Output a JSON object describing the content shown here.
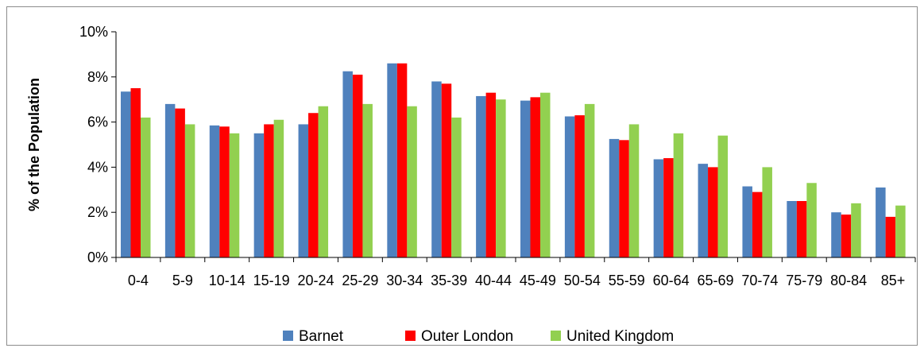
{
  "chart_data": {
    "type": "bar",
    "title": "",
    "xlabel": "",
    "ylabel": "% of the Population",
    "ylim": [
      0,
      10
    ],
    "yticks": [
      "0%",
      "2%",
      "4%",
      "6%",
      "8%",
      "10%"
    ],
    "y_tick_values": [
      0,
      2,
      4,
      6,
      8,
      10
    ],
    "grid": false,
    "legend_position": "bottom",
    "categories": [
      "0-4",
      "5-9",
      "10-14",
      "15-19",
      "20-24",
      "25-29",
      "30-34",
      "35-39",
      "40-44",
      "45-49",
      "50-54",
      "55-59",
      "60-64",
      "65-69",
      "70-74",
      "75-79",
      "80-84",
      "85+"
    ],
    "series": [
      {
        "name": "Barnet",
        "color": "#4f81bd",
        "values": [
          7.35,
          6.8,
          5.85,
          5.5,
          5.9,
          8.25,
          8.6,
          7.8,
          7.15,
          6.95,
          6.25,
          5.25,
          4.35,
          4.15,
          3.15,
          2.5,
          2.0,
          3.1
        ]
      },
      {
        "name": "Outer London",
        "color": "#ff0000",
        "values": [
          7.5,
          6.6,
          5.8,
          5.9,
          6.4,
          8.1,
          8.6,
          7.7,
          7.3,
          7.1,
          6.3,
          5.2,
          4.4,
          4.0,
          2.9,
          2.5,
          1.9,
          1.8
        ]
      },
      {
        "name": "United Kingdom",
        "color": "#92d050",
        "values": [
          6.2,
          5.9,
          5.5,
          6.1,
          6.7,
          6.8,
          6.7,
          6.2,
          7.0,
          7.3,
          6.8,
          5.9,
          5.5,
          5.4,
          4.0,
          3.3,
          2.4,
          2.3
        ]
      }
    ]
  }
}
